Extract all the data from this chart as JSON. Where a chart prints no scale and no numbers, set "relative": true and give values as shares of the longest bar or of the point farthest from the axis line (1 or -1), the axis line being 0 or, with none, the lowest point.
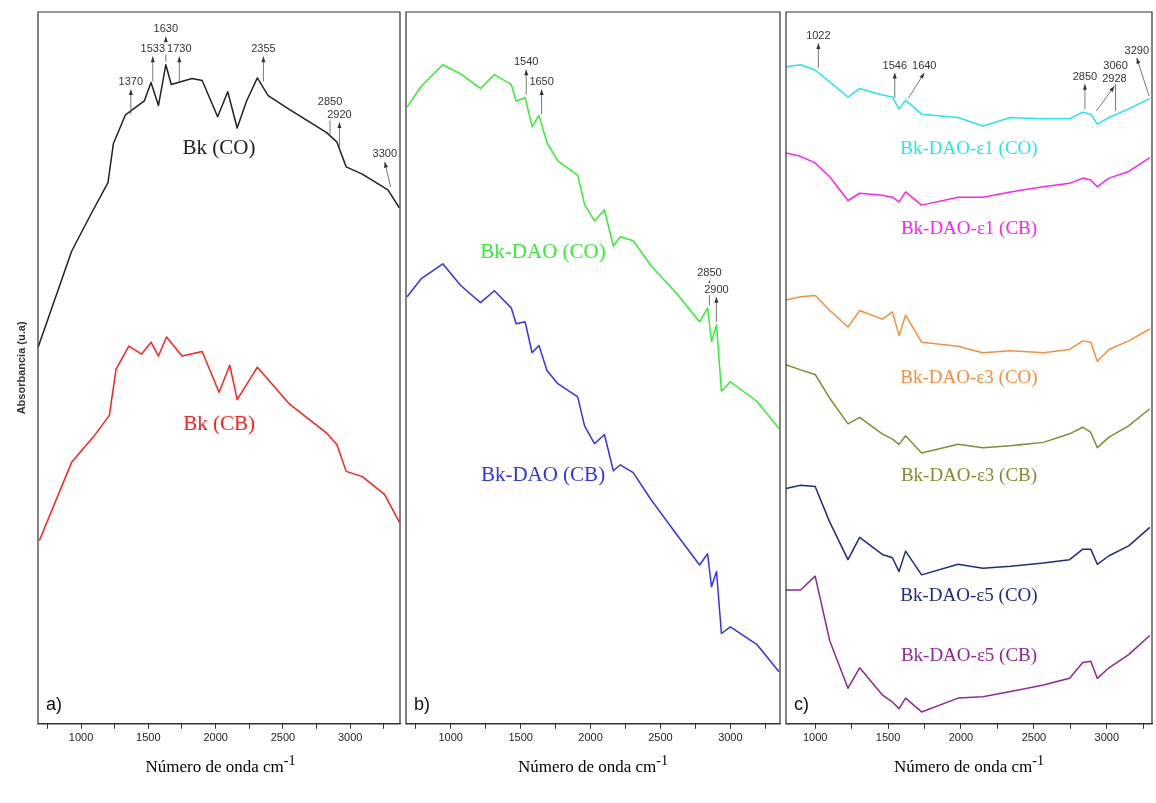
{
  "chart_data": [
    {
      "type": "line",
      "relative": true,
      "ylabel": "Absorbancia (u.a)",
      "xlabel": "Número de onda cm$^{-1}$",
      "xlim": [
        680,
        3370
      ],
      "xticks": [
        {
          "value": 750,
          "label": null
        },
        1000,
        {
          "value": 1250,
          "label": null
        },
        1500,
        {
          "value": 1750,
          "label": null
        },
        2000,
        {
          "value": 2250,
          "label": null
        },
        2500,
        {
          "value": 2750,
          "label": null
        },
        3000,
        {
          "value": 3250,
          "label": null
        }
      ],
      "x": [
        680,
        930,
        1070,
        1200,
        1240,
        1330,
        1470,
        1520,
        1575,
        1630,
        1670,
        1825,
        1900,
        2015,
        2090,
        2160,
        2230,
        2310,
        2390,
        2550,
        2825,
        2900,
        2970,
        3090,
        3280,
        3365
      ],
      "series": [
        {
          "name": "Bk (CO)",
          "color": "#222222",
          "values": [
            0.571,
            0.717,
            0.772,
            0.821,
            0.88,
            0.924,
            0.945,
            0.973,
            0.938,
            1,
            0.97,
            0.979,
            0.976,
            0.921,
            0.959,
            0.904,
            0.945,
            0.98,
            0.953,
            0.932,
            0.897,
            0.883,
            0.845,
            0.834,
            0.81,
            0.783
          ]
        },
        {
          "name": "Bk (CB)",
          "color": "#ff2020",
          "x": [
            690,
            930,
            1090,
            1210,
            1260,
            1355,
            1450,
            1520,
            1575,
            1635,
            1750,
            1900,
            2025,
            2105,
            2160,
            2310,
            2550,
            2825,
            2900,
            2970,
            3090,
            3255,
            3365
          ],
          "values": [
            0.278,
            0.397,
            0.435,
            0.468,
            0.538,
            0.573,
            0.561,
            0.579,
            0.558,
            0.587,
            0.558,
            0.565,
            0.503,
            0.544,
            0.492,
            0.541,
            0.485,
            0.441,
            0.424,
            0.383,
            0.375,
            0.348,
            0.306
          ]
        }
      ],
      "annotations": [
        {
          "text": "1370",
          "x": 1370,
          "y": 0.92
        },
        {
          "text": "1533",
          "x": 1533,
          "y": 0.97
        },
        {
          "text": "1630",
          "x": 1630,
          "y": 1
        },
        {
          "text": "1730",
          "x": 1730,
          "y": 0.97
        },
        {
          "text": "2355",
          "x": 2355,
          "y": 0.97
        },
        {
          "text": "2850",
          "x": 2850,
          "y": 0.89
        },
        {
          "text": "2920",
          "x": 2920,
          "y": 0.87
        },
        {
          "text": "3300",
          "x": 3300,
          "y": 0.81
        },
        "a)"
      ]
    },
    {
      "type": "line",
      "relative": true,
      "xlabel": "Número de onda cm$^{-1}$",
      "xlim": [
        680,
        3355
      ],
      "xticks": [
        {
          "value": 750,
          "label": null
        },
        1000,
        {
          "value": 1250,
          "label": null
        },
        1500,
        {
          "value": 1750,
          "label": null
        },
        2000,
        {
          "value": 2250,
          "label": null
        },
        2500,
        {
          "value": 2750,
          "label": null
        },
        3000,
        {
          "value": 3250,
          "label": null
        }
      ],
      "x": [
        688,
        787,
        943,
        1071,
        1213,
        1312,
        1433,
        1468,
        1532,
        1582,
        1631,
        1688,
        1766,
        1908,
        1957,
        2028,
        2099,
        2163,
        2213,
        2305,
        2433,
        2624,
        2780,
        2837,
        2865,
        2901,
        2936,
        3000,
        3191,
        3348
      ],
      "series": [
        {
          "name": "Bk-DAO (CO)",
          "color": "#33ee33",
          "values": [
            0.936,
            0.967,
            1,
            0.986,
            0.964,
            0.985,
            0.97,
            0.945,
            0.95,
            0.906,
            0.923,
            0.882,
            0.854,
            0.832,
            0.788,
            0.763,
            0.78,
            0.725,
            0.739,
            0.733,
            0.695,
            0.651,
            0.61,
            0.631,
            0.58,
            0.605,
            0.505,
            0.519,
            0.489,
            0.448
          ]
        },
        {
          "name": "Bk-DAO (CB)",
          "color": "#3333ee",
          "values": [
            0.648,
            0.675,
            0.698,
            0.665,
            0.639,
            0.657,
            0.631,
            0.607,
            0.61,
            0.563,
            0.574,
            0.536,
            0.516,
            0.496,
            0.452,
            0.425,
            0.439,
            0.384,
            0.393,
            0.381,
            0.34,
            0.285,
            0.241,
            0.258,
            0.208,
            0.231,
            0.137,
            0.147,
            0.12,
            0.079
          ]
        }
      ],
      "annotations": [
        {
          "text": "1540",
          "x": 1540,
          "y": 0.95
        },
        {
          "text": "1650",
          "x": 1650,
          "y": 0.92
        },
        {
          "text": "2850",
          "x": 2850,
          "y": 0.63
        },
        {
          "text": "2900",
          "x": 2900,
          "y": 0.605
        },
        "b)"
      ]
    },
    {
      "type": "line",
      "relative": true,
      "xlabel": "Número de onda cm$^{-1}$",
      "xlim": [
        800,
        3310
      ],
      "xticks": [
        1000,
        {
          "value": 1250,
          "label": null
        },
        1500,
        {
          "value": 1750,
          "label": null
        },
        2000,
        {
          "value": 2250,
          "label": null
        },
        2500,
        {
          "value": 2750,
          "label": null
        },
        3000,
        {
          "value": 3250,
          "label": null
        }
      ],
      "x": [
        800,
        900,
        1000,
        1100,
        1225,
        1305,
        1460,
        1530,
        1575,
        1620,
        1730,
        1980,
        2150,
        2340,
        2565,
        2745,
        2835,
        2890,
        2935,
        3015,
        3150,
        3295
      ],
      "series": [
        {
          "name": "Bk-DAO-ε1 (CO)",
          "color": "#22e8ee",
          "values": [
            0.997,
            1,
            0.992,
            0.974,
            0.951,
            0.964,
            0.954,
            0.951,
            0.933,
            0.946,
            0.925,
            0.92,
            0.907,
            0.92,
            0.918,
            0.918,
            0.928,
            0.925,
            0.91,
            0.92,
            0.933,
            0.949
          ]
        },
        {
          "name": "Bk-DAO-ε1 (CB)",
          "color": "#ff22f0",
          "values": [
            0.866,
            0.861,
            0.851,
            0.83,
            0.794,
            0.805,
            0.802,
            0.799,
            0.792,
            0.807,
            0.787,
            0.799,
            0.799,
            0.807,
            0.815,
            0.82,
            0.828,
            0.825,
            0.815,
            0.828,
            0.838,
            0.859
          ]
        },
        {
          "name": "Bk-DAO-ε3 (CO)",
          "color": "#f4903a",
          "values": [
            0.643,
            0.648,
            0.65,
            0.627,
            0.602,
            0.627,
            0.614,
            0.625,
            0.589,
            0.62,
            0.579,
            0.573,
            0.563,
            0.566,
            0.563,
            0.568,
            0.581,
            0.579,
            0.55,
            0.568,
            0.581,
            0.599
          ]
        },
        {
          "name": "Bk-DAO-ε3 (CB)",
          "color": "#868a2e",
          "values": [
            0.545,
            0.537,
            0.53,
            0.494,
            0.455,
            0.465,
            0.44,
            0.432,
            0.424,
            0.437,
            0.411,
            0.424,
            0.419,
            0.422,
            0.427,
            0.44,
            0.45,
            0.442,
            0.419,
            0.435,
            0.452,
            0.478
          ]
        },
        {
          "name": "Bk-DAO-ε5 (CO)",
          "color": "#1f2a80",
          "values": [
            0.357,
            0.362,
            0.36,
            0.306,
            0.249,
            0.283,
            0.257,
            0.252,
            0.231,
            0.262,
            0.226,
            0.242,
            0.236,
            0.239,
            0.244,
            0.249,
            0.265,
            0.265,
            0.242,
            0.255,
            0.27,
            0.298
          ]
        },
        {
          "name": "Bk-DAO-ε5 (CB)",
          "color": "#8e2a8e",
          "values": [
            0.203,
            0.203,
            0.224,
            0.126,
            0.054,
            0.085,
            0.044,
            0.033,
            0.023,
            0.039,
            0.018,
            0.039,
            0.041,
            0.049,
            0.059,
            0.069,
            0.093,
            0.095,
            0.069,
            0.085,
            0.105,
            0.134
          ]
        }
      ],
      "annotations": [
        {
          "text": "1022",
          "x": 1022,
          "y": 0.99
        },
        {
          "text": "1546",
          "x": 1546,
          "y": 0.945
        },
        {
          "text": "1640",
          "x": 1640,
          "y": 0.945
        },
        {
          "text": "2850",
          "x": 2850,
          "y": 0.928
        },
        {
          "text": "2928",
          "x": 2928,
          "y": 0.925
        },
        {
          "text": "3060",
          "x": 3060,
          "y": 0.925
        },
        {
          "text": "3290",
          "x": 3290,
          "y": 0.948
        },
        "c)"
      ]
    }
  ]
}
